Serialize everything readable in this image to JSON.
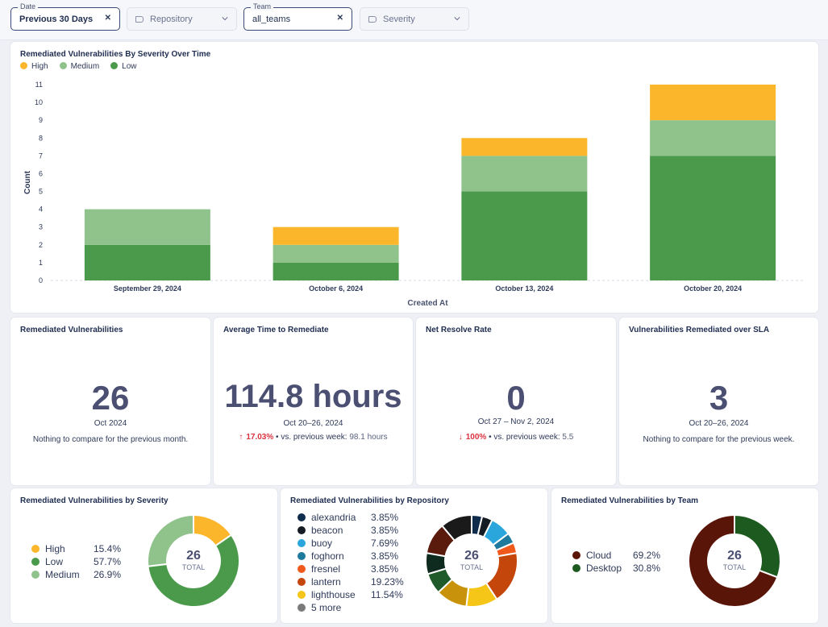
{
  "filters": {
    "date": {
      "legend": "Date",
      "value": "Previous 30 Days"
    },
    "repository": {
      "placeholder": "Repository"
    },
    "team": {
      "legend": "Team",
      "value": "all_teams"
    },
    "severity": {
      "placeholder": "Severity"
    }
  },
  "colors": {
    "high": "#fbb62c",
    "medium": "#90c28c",
    "low": "#4b9a4b"
  },
  "chart_data": {
    "type": "bar",
    "stacked": true,
    "title": "Remediated Vulnerabilities By Severity Over Time",
    "xlabel": "Created At",
    "ylabel": "Count",
    "ylim": [
      0,
      11
    ],
    "yticks": [
      "0",
      "1",
      "2",
      "3",
      "4",
      "5",
      "6",
      "7",
      "8",
      "9",
      "10",
      "11"
    ],
    "categories": [
      "September 29, 2024",
      "October 6, 2024",
      "October 13, 2024",
      "October 20, 2024"
    ],
    "series": [
      {
        "name": "Low",
        "values": [
          2,
          1,
          5,
          7
        ]
      },
      {
        "name": "Medium",
        "values": [
          2,
          1,
          2,
          2
        ]
      },
      {
        "name": "High",
        "values": [
          0,
          1,
          1,
          2
        ]
      }
    ],
    "legend": [
      "High",
      "Medium",
      "Low"
    ]
  },
  "kpis": [
    {
      "title": "Remediated Vulnerabilities",
      "value": "26",
      "period": "Oct 2024",
      "compare": "Nothing to compare for the previous month."
    },
    {
      "title": "Average Time to Remediate",
      "value": "114.8 hours",
      "period": "Oct 20–26, 2024",
      "arrow": "↑",
      "pct": "17.03%",
      "vs": "• vs. previous week:",
      "prev": "98.1 hours"
    },
    {
      "title": "Net Resolve Rate",
      "value": "0",
      "period": "Oct 27 – Nov 2, 2024",
      "arrow": "↓",
      "pct": "100%",
      "vs": "• vs. previous week:",
      "prev": "5.5"
    },
    {
      "title": "Vulnerabilities Remediated over SLA",
      "value": "3",
      "period": "Oct 20–26, 2024",
      "compare": "Nothing to compare for the previous week."
    }
  ],
  "severity_donut": {
    "title": "Remediated Vulnerabilities by Severity",
    "total": "26",
    "total_label": "TOTAL",
    "items": [
      {
        "label": "High",
        "pct": "15.4%",
        "value": 15.4,
        "color": "#fbb62c"
      },
      {
        "label": "Low",
        "pct": "57.7%",
        "value": 57.7,
        "color": "#4b9a4b"
      },
      {
        "label": "Medium",
        "pct": "26.9%",
        "value": 26.9,
        "color": "#90c28c"
      }
    ]
  },
  "repo_donut": {
    "title": "Remediated Vulnerabilities by Repository",
    "total": "26",
    "total_label": "TOTAL",
    "items": [
      {
        "label": "alexandria",
        "pct": "3.85%",
        "value": 3.85,
        "color": "#0f2c4c"
      },
      {
        "label": "beacon",
        "pct": "3.85%",
        "value": 3.85,
        "color": "#141b22"
      },
      {
        "label": "buoy",
        "pct": "7.69%",
        "value": 7.69,
        "color": "#2aa6dc"
      },
      {
        "label": "foghorn",
        "pct": "3.85%",
        "value": 3.85,
        "color": "#1e7a9c"
      },
      {
        "label": "fresnel",
        "pct": "3.85%",
        "value": 3.85,
        "color": "#ef5a1c"
      },
      {
        "label": "lantern",
        "pct": "19.23%",
        "value": 19.23,
        "color": "#c4460b"
      },
      {
        "label": "lighthouse",
        "pct": "11.54%",
        "value": 11.54,
        "color": "#f5c518"
      },
      {
        "label": "5 more",
        "pct": "",
        "value": 0,
        "color": "#7a7a7a"
      }
    ],
    "extra_segments": [
      {
        "value": 11.54,
        "color": "#c8930a"
      },
      {
        "value": 7.69,
        "color": "#1f5a2a"
      },
      {
        "value": 7.69,
        "color": "#0f2a1f"
      },
      {
        "value": 11.54,
        "color": "#5a1a0c"
      },
      {
        "value": 11.54,
        "color": "#1a1a1a"
      }
    ]
  },
  "team_donut": {
    "title": "Remediated Vulnerabilities by Team",
    "total": "26",
    "total_label": "TOTAL",
    "items": [
      {
        "label": "Cloud",
        "pct": "69.2%",
        "value": 69.2,
        "color": "#5a1509"
      },
      {
        "label": "Desktop",
        "pct": "30.8%",
        "value": 30.8,
        "color": "#1d5a20"
      }
    ]
  }
}
